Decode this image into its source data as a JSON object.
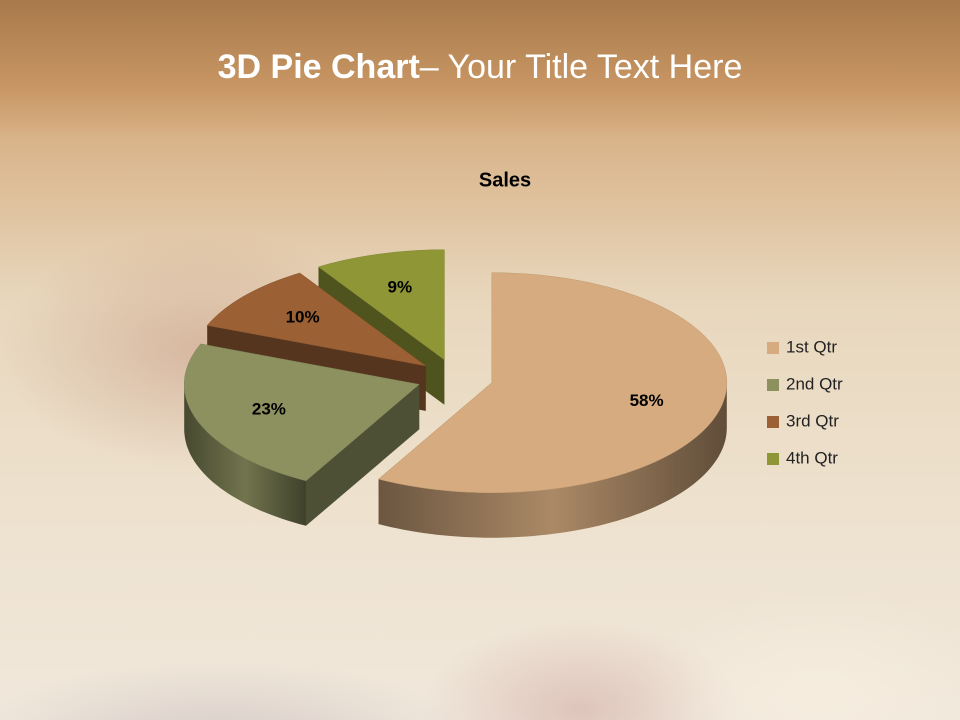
{
  "slide": {
    "title_bold": "3D Pie Chart",
    "title_rest": "– Your Title Text Here"
  },
  "chart_data": {
    "type": "pie",
    "title": "Sales",
    "categories": [
      "1st Qtr",
      "2nd Qtr",
      "3rd Qtr",
      "4th Qtr"
    ],
    "values": [
      58,
      23,
      10,
      9
    ],
    "value_labels": [
      "58%",
      "23%",
      "10%",
      "9%"
    ],
    "colors": [
      "#d6ab7f",
      "#8d9160",
      "#9b6034",
      "#8f9636"
    ],
    "legend": "right"
  }
}
